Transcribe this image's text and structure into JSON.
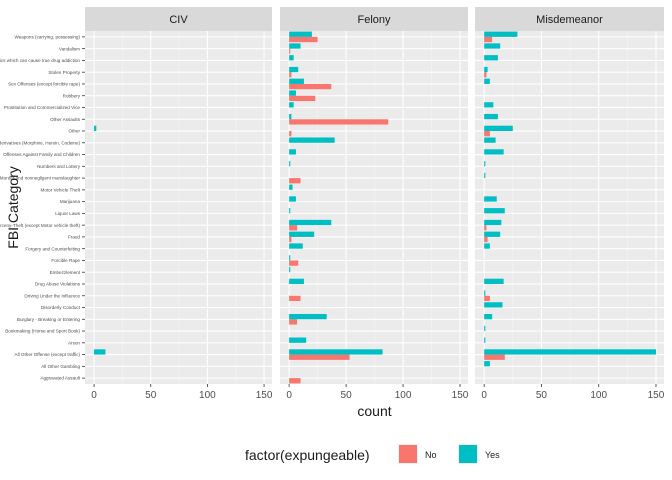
{
  "chart_data": {
    "type": "bar",
    "orientation": "horizontal",
    "facets": [
      "CIV",
      "Felony",
      "Misdemeanor"
    ],
    "xlabel": "count",
    "ylabel": "FBI Category",
    "xlim": [
      -8,
      157
    ],
    "xticks": [
      0,
      50,
      100,
      150
    ],
    "grid": true,
    "legend": {
      "title": "factor(expungeable)",
      "position": "bottom",
      "entries": [
        {
          "label": "No",
          "color": "#F8766D"
        },
        {
          "label": "Yes",
          "color": "#00BFC4"
        }
      ]
    },
    "categories": [
      "Aggravated Assault",
      "All Other Gambling",
      "All Other Offense (except traffic)",
      "Arson",
      "Bookmaking (Horse and Sport Book)",
      "Burglary - Breaking or Entering",
      "Disorderly Conduct",
      "Driving Under the Influence",
      "Drug Abuse Violations",
      "Embezzlement",
      "Forcible Rape",
      "Forgery and Counterfeiting",
      "Fraud",
      "Larceny-Theft (except Motor vehicle theft)",
      "Liquor Laws",
      "Marijuana",
      "Motor Vehicle Theft",
      "Murder and nonnegligent manslaughter",
      "Numbers and Lottery",
      "Offenses Against Family and Children",
      "Opium or Cocaine and their derivatives (Morphine, Heroin, Codeine)",
      "Other",
      "Other Assaults",
      "Prostitution and Commercialized Vice",
      "Robbery",
      "Sex Offenses (except forcible rape)",
      "Stolen Property",
      "Synthetic Narcotics - Manufactured Narcotics which can cause true drug addiction",
      "Vandalism",
      "Weapons (carrying, possessing)"
    ],
    "series": [
      {
        "name": "No",
        "facet_values": {
          "CIV": [
            0,
            0,
            0,
            0,
            0,
            0,
            0,
            0,
            0,
            0,
            0,
            0,
            0,
            0,
            0,
            0,
            0,
            0,
            0,
            0,
            0,
            0,
            0,
            0,
            0,
            0,
            0,
            0,
            0,
            0
          ],
          "Felony": [
            10,
            0,
            53,
            0,
            0,
            7,
            0,
            10,
            0,
            0,
            8,
            0,
            2,
            7,
            0,
            0,
            0,
            10,
            0,
            0,
            0,
            2,
            87,
            0,
            23,
            37,
            2,
            0,
            1,
            25
          ],
          "Misdemeanor": [
            0,
            0,
            18,
            0,
            0,
            0,
            0,
            5,
            0,
            0,
            0,
            0,
            3,
            2,
            0,
            0,
            0,
            0,
            0,
            0,
            0,
            5,
            0,
            0,
            0,
            0,
            2,
            0,
            0,
            7
          ]
        }
      },
      {
        "name": "Yes",
        "facet_values": {
          "CIV": [
            0,
            0,
            10,
            0,
            0,
            0,
            0,
            0,
            0,
            0,
            0,
            0,
            0,
            0,
            0,
            0,
            0,
            0,
            0,
            0,
            0,
            2,
            0,
            0,
            0,
            0,
            0,
            0,
            0,
            0
          ],
          "Felony": [
            0,
            0,
            82,
            15,
            0,
            33,
            0,
            0,
            13,
            1,
            1,
            12,
            22,
            37,
            1,
            6,
            3,
            0,
            1,
            6,
            40,
            0,
            2,
            4,
            6,
            13,
            8,
            4,
            10,
            20
          ],
          "Misdemeanor": [
            0,
            5,
            150,
            1,
            1,
            7,
            16,
            1,
            17,
            0,
            0,
            5,
            14,
            15,
            18,
            11,
            0,
            1,
            1,
            17,
            10,
            25,
            12,
            8,
            0,
            5,
            3,
            12,
            14,
            29
          ]
        }
      }
    ]
  }
}
